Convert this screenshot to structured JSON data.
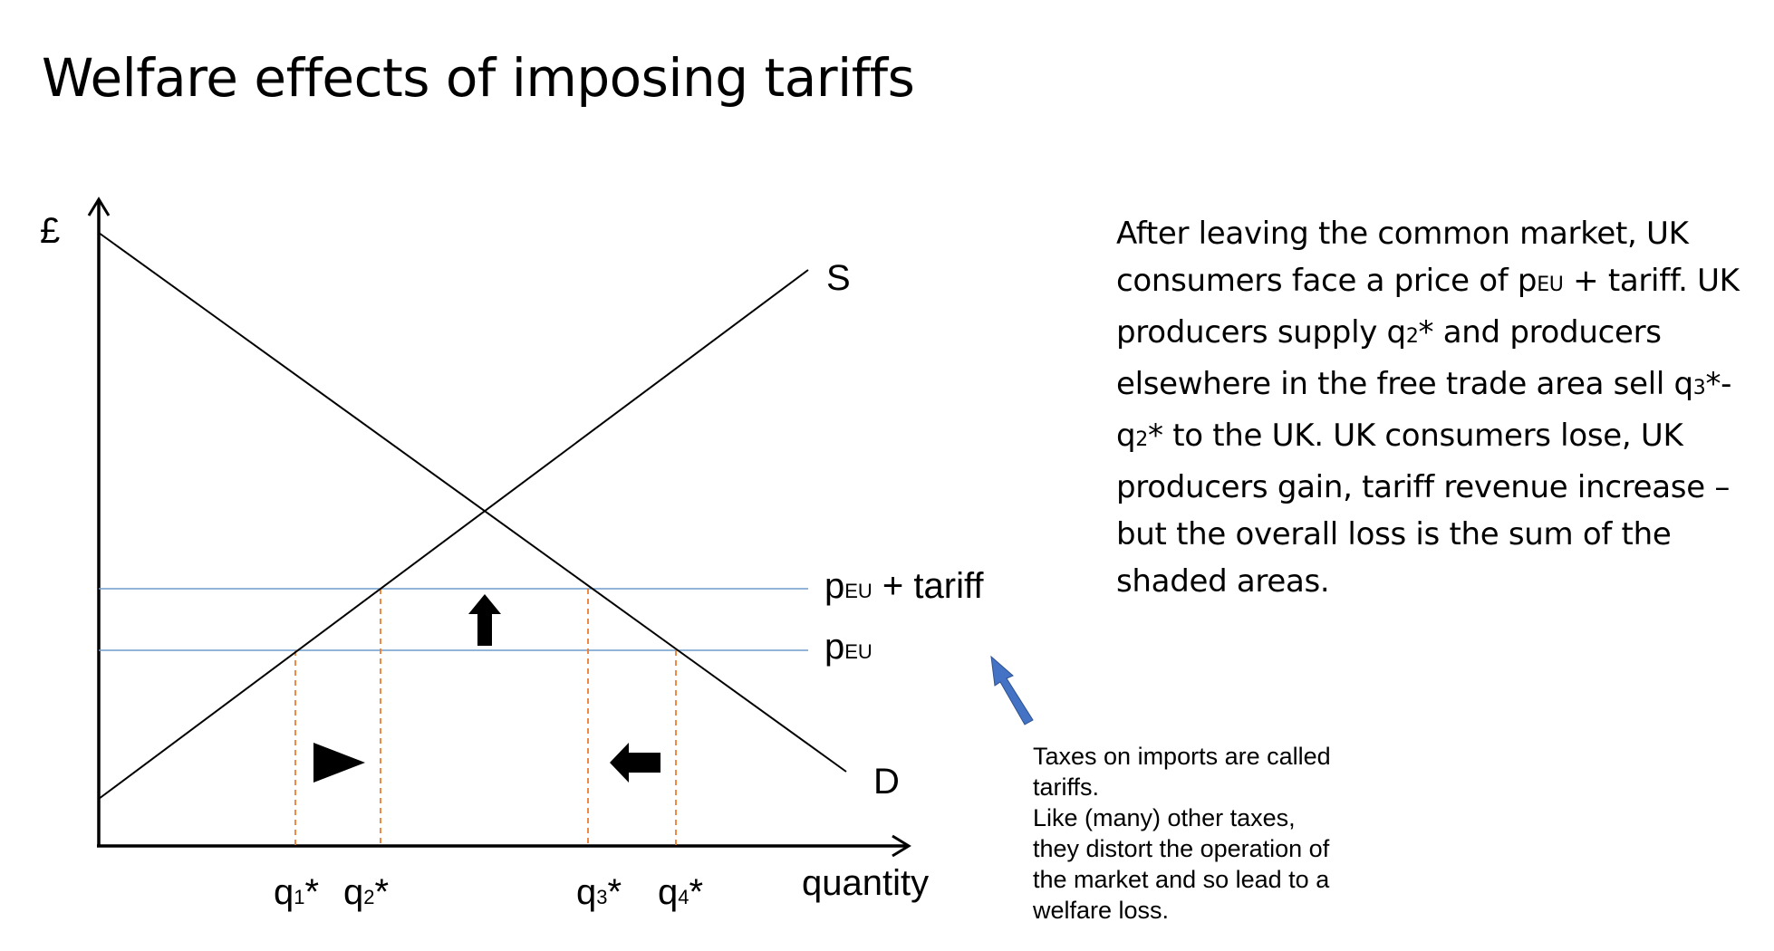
{
  "title": "Welfare effects of imposing tariffs",
  "diagram": {
    "y_axis_label": "£",
    "x_axis_label": "quantity",
    "supply_label": "S",
    "demand_label": "D",
    "price_lines": [
      {
        "base": "p",
        "sub": "EU",
        "suffix": " + tariff"
      },
      {
        "base": "p",
        "sub": "EU",
        "suffix": ""
      }
    ],
    "quantity_labels": [
      {
        "base": "q",
        "sub": "1",
        "suffix": "*"
      },
      {
        "base": "q",
        "sub": "2",
        "suffix": "*"
      },
      {
        "base": "q",
        "sub": "3",
        "suffix": "*"
      },
      {
        "base": "q",
        "sub": "4",
        "suffix": "*"
      }
    ],
    "colors": {
      "price_line": "#6f9bc9",
      "dashed_line": "#ed7d31",
      "curve": "#000000",
      "note_arrow": "#4472c4"
    }
  },
  "explanation": {
    "lines": [
      [
        {
          "t": "After leaving the common market, UK"
        }
      ],
      [
        {
          "t": "consumers face a price of p"
        },
        {
          "t": "EU",
          "small": true
        },
        {
          "t": " + tariff. UK"
        }
      ],
      [
        {
          "t": "producers supply q"
        },
        {
          "t": "2",
          "small": true
        },
        {
          "t": "* and producers"
        }
      ],
      [
        {
          "t": "elsewhere in the free trade area sell q"
        },
        {
          "t": "3",
          "small": true
        },
        {
          "t": "*-"
        }
      ],
      [
        {
          "t": "q"
        },
        {
          "t": "2",
          "small": true
        },
        {
          "t": "* to the UK. UK consumers lose, UK"
        }
      ],
      [
        {
          "t": "producers gain, tariff revenue increase –"
        }
      ],
      [
        {
          "t": "but the overall loss is the sum of the"
        }
      ],
      [
        {
          "t": "shaded areas."
        }
      ]
    ]
  },
  "note": {
    "lines": [
      "Taxes on imports are called",
      "tariffs.",
      "Like (many) other taxes,",
      "they distort the operation of",
      "the market and so lead to a",
      "welfare loss."
    ]
  }
}
